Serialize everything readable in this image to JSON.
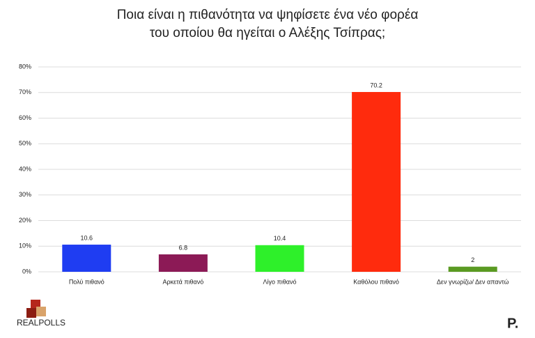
{
  "chart_data": {
    "type": "bar",
    "title": [
      "Ποια είναι η πιθανότητα να ψηφίσετε ένα νέο φορέα",
      "του οποίου θα ηγείται ο Αλέξης Τσίπρας;"
    ],
    "categories": [
      "Πολύ πιθανό",
      "Αρκετά πιθανό",
      "Λίγο πιθανό",
      "Καθόλου πιθανό",
      "Δεν γνωρίζω/ Δεν απαντώ"
    ],
    "values": [
      10.6,
      6.8,
      10.4,
      70.2,
      2
    ],
    "colors": [
      "#1f3df2",
      "#8c1a56",
      "#2ef02a",
      "#ff2b0d",
      "#5a9a22"
    ],
    "ylim": [
      0,
      80
    ],
    "yticks": [
      {
        "value": 0,
        "label": "0%"
      },
      {
        "value": 10,
        "label": "10%"
      },
      {
        "value": 20,
        "label": "20%"
      },
      {
        "value": 30,
        "label": "30%"
      },
      {
        "value": 40,
        "label": "40%"
      },
      {
        "value": 50,
        "label": "50%"
      },
      {
        "value": 60,
        "label": "60%"
      },
      {
        "value": 70,
        "label": "70%"
      },
      {
        "value": 80,
        "label": "80%"
      }
    ],
    "grid": true
  },
  "branding": {
    "left": "REALPOLLS",
    "right": "P."
  }
}
